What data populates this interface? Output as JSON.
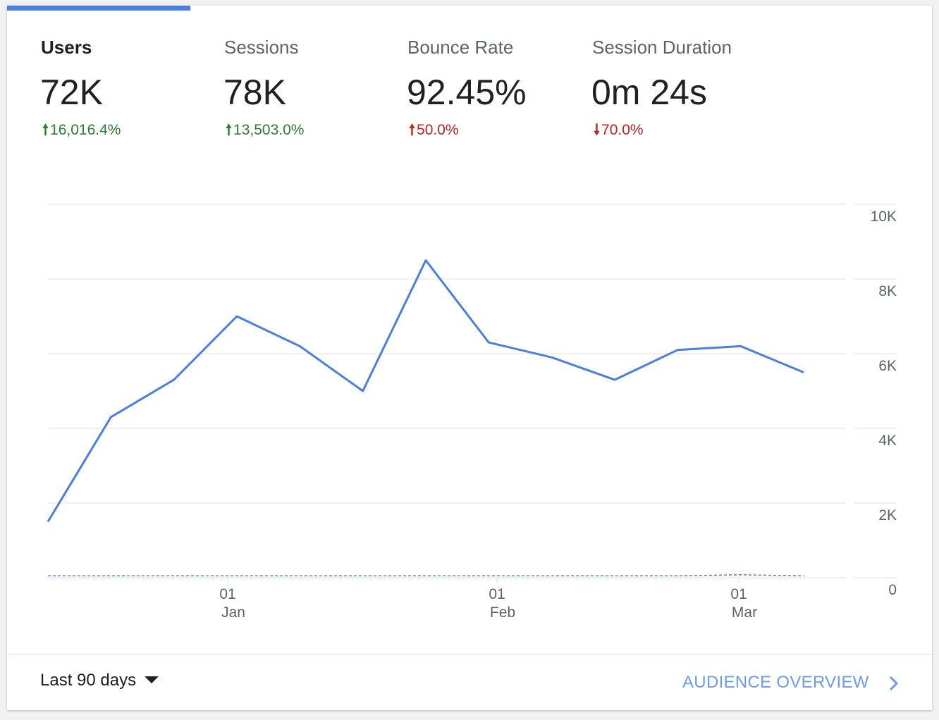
{
  "tabs": [
    {
      "label": "Users",
      "value": "72K",
      "change": "16,016.4%",
      "direction": "up",
      "change_color": "#2e7d32",
      "active": true
    },
    {
      "label": "Sessions",
      "value": "78K",
      "change": "13,503.0%",
      "direction": "up",
      "change_color": "#2e7d32",
      "active": false
    },
    {
      "label": "Bounce Rate",
      "value": "92.45%",
      "change": "50.0%",
      "direction": "up",
      "change_color": "#c5221f",
      "active": false
    },
    {
      "label": "Session Duration",
      "value": "0m 24s",
      "change": "70.0%",
      "direction": "down",
      "change_color": "#c5221f",
      "active": false
    }
  ],
  "footer": {
    "date_range_label": "Last 90 days",
    "overview_label": "AUDIENCE OVERVIEW"
  },
  "colors": {
    "accent": "#4a7fe0",
    "link": "#6d9be8",
    "up_good": "#2e7d32",
    "bad": "#c5221f"
  },
  "chart_data": {
    "type": "line",
    "y_axis": {
      "min": 0,
      "max": 10000,
      "ticks": [
        "0",
        "2K",
        "4K",
        "6K",
        "8K",
        "10K"
      ],
      "position": "right"
    },
    "x_tick_labels": [
      {
        "day": "01",
        "month": "Jan"
      },
      {
        "day": "01",
        "month": "Feb"
      },
      {
        "day": "01",
        "month": "Mar"
      }
    ],
    "series": [
      {
        "style": "solid",
        "color": "#4a7fe0",
        "values": [
          1500,
          4300,
          5300,
          7000,
          6200,
          5000,
          8500,
          6300,
          5900,
          5300,
          6100,
          6200,
          5500
        ]
      },
      {
        "style": "dashed",
        "color": "#4a7fe0",
        "values": [
          50,
          50,
          50,
          50,
          50,
          50,
          50,
          50,
          50,
          50,
          50,
          80,
          50
        ]
      }
    ],
    "grid": true
  }
}
